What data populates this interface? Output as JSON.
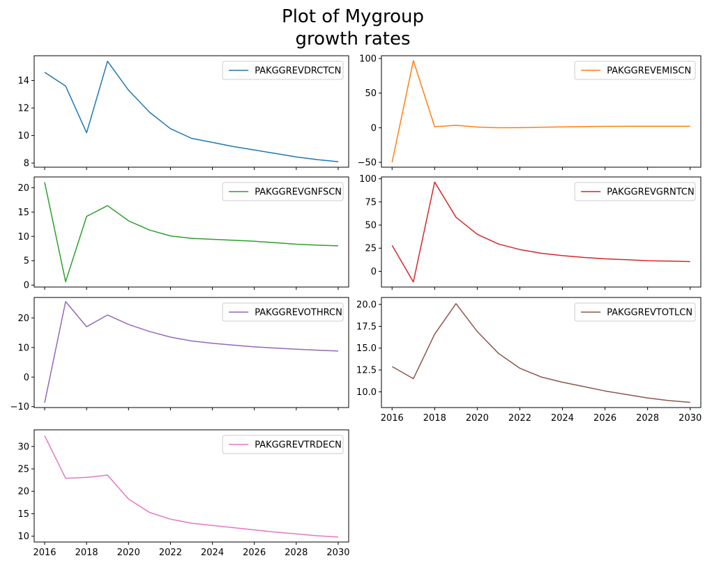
{
  "title_lines": [
    "Plot of Mygroup",
    "growth rates"
  ],
  "chart_data": [
    {
      "type": "line",
      "title": "",
      "xlabel": "",
      "ylabel": "",
      "x": [
        2016,
        2017,
        2018,
        2019,
        2020,
        2021,
        2022,
        2023,
        2024,
        2025,
        2026,
        2027,
        2028,
        2029,
        2030
      ],
      "xlim": [
        2015.5,
        2030.5
      ],
      "xticks": [
        2016,
        2018,
        2020,
        2022,
        2024,
        2026,
        2028,
        2030
      ],
      "ylim": [
        7.7,
        15.8
      ],
      "yticks": [
        "8",
        "10",
        "12",
        "14"
      ],
      "legend_position": "upper right",
      "series": [
        {
          "name": "PAKGGREVDRCTCN",
          "color": "#1f77b4",
          "values": [
            14.6,
            13.6,
            10.2,
            15.4,
            13.3,
            11.7,
            10.5,
            9.8,
            9.5,
            9.2,
            8.95,
            8.7,
            8.45,
            8.25,
            8.1
          ]
        }
      ]
    },
    {
      "type": "line",
      "title": "",
      "xlabel": "",
      "ylabel": "",
      "x": [
        2016,
        2017,
        2018,
        2019,
        2020,
        2021,
        2022,
        2023,
        2024,
        2025,
        2026,
        2027,
        2028,
        2029,
        2030
      ],
      "xlim": [
        2015.5,
        2030.5
      ],
      "xticks": [
        2016,
        2018,
        2020,
        2022,
        2024,
        2026,
        2028,
        2030
      ],
      "ylim": [
        -57,
        104
      ],
      "yticks": [
        "−50",
        "0",
        "50",
        "100"
      ],
      "legend_position": "upper right",
      "series": [
        {
          "name": "PAKGGREVEMISCN",
          "color": "#ff7f0e",
          "values": [
            -50,
            97,
            1.5,
            3.5,
            1,
            0,
            0.2,
            0.8,
            1.3,
            1.7,
            2,
            2.1,
            2.1,
            2.2,
            2.2
          ]
        }
      ]
    },
    {
      "type": "line",
      "title": "",
      "xlabel": "",
      "ylabel": "",
      "x": [
        2016,
        2017,
        2018,
        2019,
        2020,
        2021,
        2022,
        2023,
        2024,
        2025,
        2026,
        2027,
        2028,
        2029,
        2030
      ],
      "xlim": [
        2015.5,
        2030.5
      ],
      "xticks": [
        2016,
        2018,
        2020,
        2022,
        2024,
        2026,
        2028,
        2030
      ],
      "ylim": [
        -0.4,
        22.2
      ],
      "yticks": [
        "0",
        "5",
        "10",
        "15",
        "20"
      ],
      "legend_position": "upper right",
      "series": [
        {
          "name": "PAKGGREVGNFSCN",
          "color": "#2ca02c",
          "values": [
            21.1,
            0.7,
            14.1,
            16.3,
            13.2,
            11.3,
            10.1,
            9.6,
            9.4,
            9.2,
            9.0,
            8.7,
            8.4,
            8.2,
            8.05
          ]
        }
      ]
    },
    {
      "type": "line",
      "title": "",
      "xlabel": "",
      "ylabel": "",
      "x": [
        2016,
        2017,
        2018,
        2019,
        2020,
        2021,
        2022,
        2023,
        2024,
        2025,
        2026,
        2027,
        2028,
        2029,
        2030
      ],
      "xlim": [
        2015.5,
        2030.5
      ],
      "xticks": [
        2016,
        2018,
        2020,
        2022,
        2024,
        2026,
        2028,
        2030
      ],
      "ylim": [
        -17,
        102
      ],
      "yticks": [
        "0",
        "25",
        "50",
        "75",
        "100"
      ],
      "legend_position": "upper right",
      "series": [
        {
          "name": "PAKGGREVGRNTCN",
          "color": "#d62728",
          "values": [
            28,
            -11.5,
            96.5,
            58.5,
            40,
            29.5,
            23.5,
            19.5,
            17,
            15,
            13.5,
            12.5,
            11.5,
            11,
            10.5
          ]
        }
      ]
    },
    {
      "type": "line",
      "title": "",
      "xlabel": "",
      "ylabel": "",
      "x": [
        2016,
        2017,
        2018,
        2019,
        2020,
        2021,
        2022,
        2023,
        2024,
        2025,
        2026,
        2027,
        2028,
        2029,
        2030
      ],
      "xlim": [
        2015.5,
        2030.5
      ],
      "xticks": [
        2016,
        2018,
        2020,
        2022,
        2024,
        2026,
        2028,
        2030
      ],
      "ylim": [
        -10.3,
        26.9
      ],
      "yticks": [
        "−10",
        "0",
        "10",
        "20"
      ],
      "legend_position": "upper right",
      "series": [
        {
          "name": "PAKGGREVOTHRCN",
          "color": "#9467bd",
          "values": [
            -8.7,
            25.5,
            17.0,
            21.0,
            17.8,
            15.4,
            13.5,
            12.2,
            11.4,
            10.8,
            10.2,
            9.8,
            9.4,
            9.1,
            8.8
          ]
        }
      ]
    },
    {
      "type": "line",
      "title": "",
      "xlabel": "",
      "ylabel": "",
      "x": [
        2016,
        2017,
        2018,
        2019,
        2020,
        2021,
        2022,
        2023,
        2024,
        2025,
        2026,
        2027,
        2028,
        2029,
        2030
      ],
      "xlim": [
        2015.5,
        2030.5
      ],
      "xticks": [
        2016,
        2018,
        2020,
        2022,
        2024,
        2026,
        2028,
        2030
      ],
      "ylim": [
        8.2,
        20.8
      ],
      "yticks": [
        "10.0",
        "12.5",
        "15.0",
        "17.5",
        "20.0"
      ],
      "legend_position": "upper right",
      "series": [
        {
          "name": "PAKGGREVTOTLCN",
          "color": "#8c564b",
          "values": [
            12.9,
            11.5,
            16.6,
            20.1,
            16.9,
            14.4,
            12.7,
            11.7,
            11.1,
            10.6,
            10.1,
            9.7,
            9.3,
            9.0,
            8.8
          ]
        }
      ]
    },
    {
      "type": "line",
      "title": "",
      "xlabel": "",
      "ylabel": "",
      "x": [
        2016,
        2017,
        2018,
        2019,
        2020,
        2021,
        2022,
        2023,
        2024,
        2025,
        2026,
        2027,
        2028,
        2029,
        2030
      ],
      "xlim": [
        2015.5,
        2030.5
      ],
      "xticks": [
        2016,
        2018,
        2020,
        2022,
        2024,
        2026,
        2028,
        2030
      ],
      "ylim": [
        8.7,
        33.7
      ],
      "yticks": [
        "10",
        "15",
        "20",
        "25",
        "30"
      ],
      "legend_position": "upper right",
      "series": [
        {
          "name": "PAKGGREVTRDECN",
          "color": "#e377c2",
          "values": [
            32.4,
            22.9,
            23.1,
            23.6,
            18.3,
            15.3,
            13.8,
            12.9,
            12.4,
            11.9,
            11.4,
            10.9,
            10.5,
            10.1,
            9.8
          ]
        }
      ]
    }
  ]
}
